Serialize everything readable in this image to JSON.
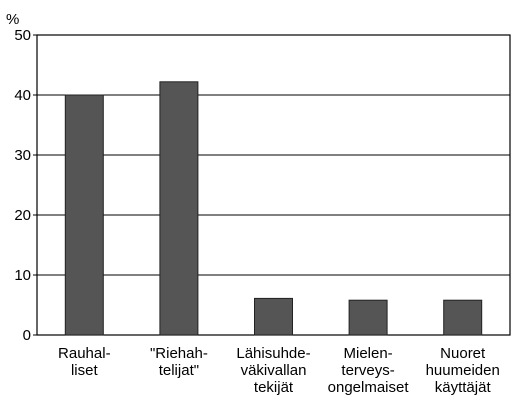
{
  "chart_data": {
    "type": "bar",
    "y_label": "%",
    "categories": [
      [
        "Rauhal-",
        "liset"
      ],
      [
        "\"Riehah-",
        "telijat\""
      ],
      [
        "Lähisuhde-",
        "väkivallan",
        "tekijät"
      ],
      [
        "Mielen-",
        "terveys-",
        "ongelmaiset"
      ],
      [
        "Nuoret",
        "huumeiden",
        "käyttäjät"
      ]
    ],
    "values": [
      40,
      42.2,
      6.1,
      5.8,
      5.8
    ],
    "color": "#555555",
    "ylim": [
      0,
      50
    ],
    "yticks": [
      0,
      10,
      20,
      30,
      40,
      50
    ],
    "grid": true
  }
}
